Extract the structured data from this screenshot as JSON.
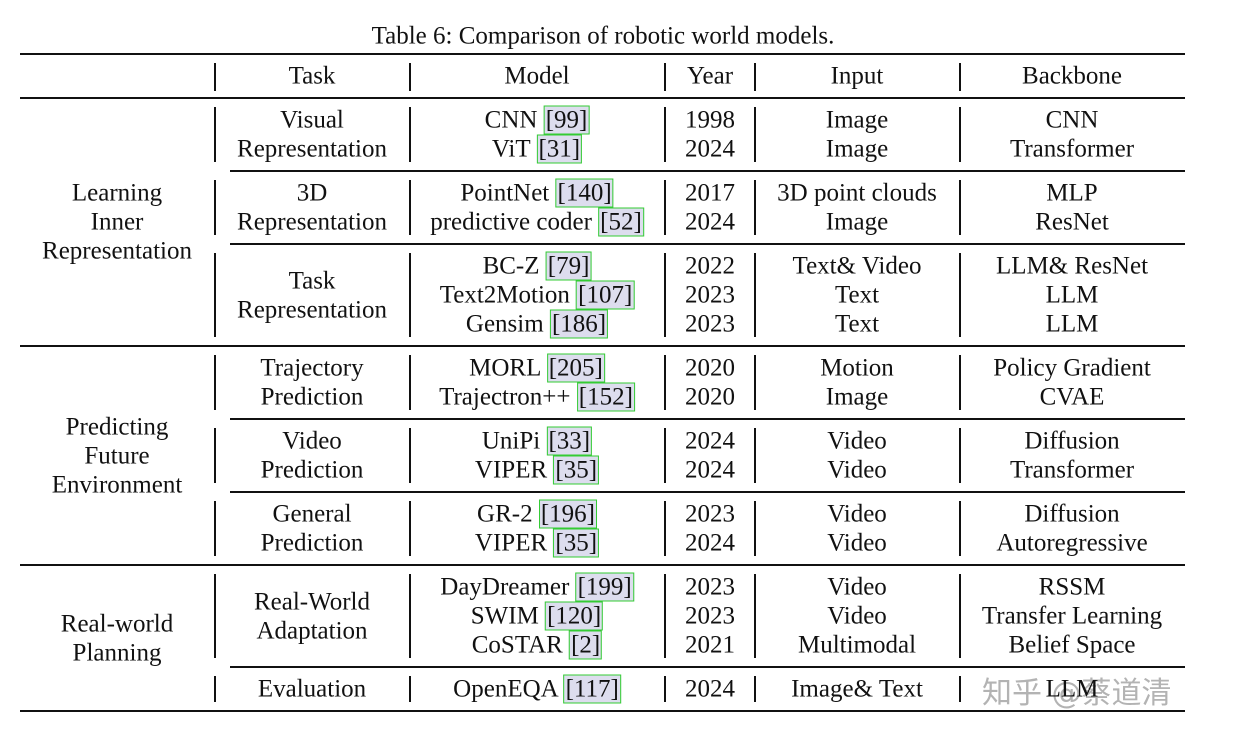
{
  "caption": "Table 6: Comparison of robotic world models.",
  "header": [
    "Task",
    "Model",
    "Year",
    "Input",
    "Backbone"
  ],
  "groups": [
    {
      "name_lines": [
        "Learning",
        "Inner",
        "Representation"
      ],
      "tasks": [
        {
          "task_lines": [
            "Visual",
            "Representation"
          ],
          "rows": [
            {
              "model": "CNN",
              "ref": "[99]",
              "year": "1998",
              "input": "Image",
              "backbone": "CNN"
            },
            {
              "model": "ViT",
              "ref": "[31]",
              "year": "2024",
              "input": "Image",
              "backbone": "Transformer"
            }
          ]
        },
        {
          "task_lines": [
            "3D",
            "Representation"
          ],
          "rows": [
            {
              "model": "PointNet",
              "ref": "[140]",
              "year": "2017",
              "input": "3D point clouds",
              "backbone": "MLP"
            },
            {
              "model": "predictive coder",
              "ref": "[52]",
              "year": "2024",
              "input": "Image",
              "backbone": "ResNet"
            }
          ]
        },
        {
          "task_lines": [
            "Task",
            "Representation"
          ],
          "rows": [
            {
              "model": "BC-Z",
              "ref": "[79]",
              "year": "2022",
              "input": "Text& Video",
              "backbone": "LLM& ResNet"
            },
            {
              "model": "Text2Motion",
              "ref": "[107]",
              "year": "2023",
              "input": "Text",
              "backbone": "LLM"
            },
            {
              "model": "Gensim",
              "ref": "[186]",
              "year": "2023",
              "input": "Text",
              "backbone": "LLM"
            }
          ]
        }
      ]
    },
    {
      "name_lines": [
        "Predicting",
        "Future",
        "Environment"
      ],
      "tasks": [
        {
          "task_lines": [
            "Trajectory",
            "Prediction"
          ],
          "rows": [
            {
              "model": "MORL",
              "ref": "[205]",
              "year": "2020",
              "input": "Motion",
              "backbone": "Policy Gradient"
            },
            {
              "model": "Trajectron++",
              "ref": "[152]",
              "year": "2020",
              "input": "Image",
              "backbone": "CVAE"
            }
          ]
        },
        {
          "task_lines": [
            "Video",
            "Prediction"
          ],
          "rows": [
            {
              "model": "UniPi",
              "ref": "[33]",
              "year": "2024",
              "input": "Video",
              "backbone": "Diffusion"
            },
            {
              "model": "VIPER",
              "ref": "[35]",
              "year": "2024",
              "input": "Video",
              "backbone": "Transformer"
            }
          ]
        },
        {
          "task_lines": [
            "General",
            "Prediction"
          ],
          "rows": [
            {
              "model": "GR-2",
              "ref": "[196]",
              "year": "2023",
              "input": "Video",
              "backbone": "Diffusion"
            },
            {
              "model": "VIPER",
              "ref": "[35]",
              "year": "2024",
              "input": "Video",
              "backbone": "Autoregressive"
            }
          ]
        }
      ]
    },
    {
      "name_lines": [
        "Real-world",
        "Planning"
      ],
      "tasks": [
        {
          "task_lines": [
            "Real-World",
            "Adaptation"
          ],
          "rows": [
            {
              "model": "DayDreamer",
              "ref": "[199]",
              "year": "2023",
              "input": "Video",
              "backbone": "RSSM"
            },
            {
              "model": "SWIM",
              "ref": "[120]",
              "year": "2023",
              "input": "Video",
              "backbone": "Transfer Learning"
            },
            {
              "model": "CoSTAR",
              "ref": "[2]",
              "year": "2021",
              "input": "Multimodal",
              "backbone": "Belief Space"
            }
          ]
        },
        {
          "task_lines": [
            "Evaluation"
          ],
          "rows": [
            {
              "model": "OpenEQA",
              "ref": "[117]",
              "year": "2024",
              "input": "Image& Text",
              "backbone": "LLM"
            }
          ]
        }
      ]
    }
  ],
  "watermark": "知乎 @蔡道清"
}
